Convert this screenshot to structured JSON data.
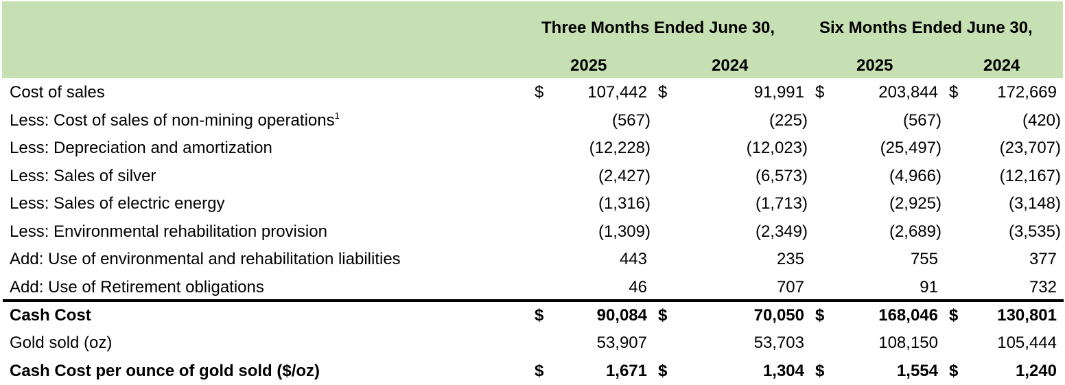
{
  "table": {
    "header": {
      "group1": "Three Months Ended June 30,",
      "group2": "Six Months Ended June 30,",
      "years": [
        "2025",
        "2024",
        "2025",
        "2024"
      ]
    },
    "header_color": "#c6e0b4",
    "rows": [
      {
        "label": "Cost of sales",
        "footnote": "",
        "bold": false,
        "dollars": [
          "$",
          "$",
          "$",
          "$"
        ],
        "values": [
          "107,442",
          "91,991",
          "203,844",
          "172,669"
        ]
      },
      {
        "label": "Less: Cost of sales of non-mining operations",
        "footnote": "1",
        "bold": false,
        "dollars": [
          "",
          "",
          "",
          ""
        ],
        "values": [
          "(567)",
          "(225)",
          "(567)",
          "(420)"
        ]
      },
      {
        "label": "Less: Depreciation and amortization",
        "footnote": "",
        "bold": false,
        "dollars": [
          "",
          "",
          "",
          ""
        ],
        "values": [
          "(12,228)",
          "(12,023)",
          "(25,497)",
          "(23,707)"
        ]
      },
      {
        "label": "Less: Sales of silver",
        "footnote": "",
        "bold": false,
        "dollars": [
          "",
          "",
          "",
          ""
        ],
        "values": [
          "(2,427)",
          "(6,573)",
          "(4,966)",
          "(12,167)"
        ]
      },
      {
        "label": "Less: Sales of electric energy",
        "footnote": "",
        "bold": false,
        "dollars": [
          "",
          "",
          "",
          ""
        ],
        "values": [
          "(1,316)",
          "(1,713)",
          "(2,925)",
          "(3,148)"
        ]
      },
      {
        "label": "Less: Environmental rehabilitation provision",
        "footnote": "",
        "bold": false,
        "dollars": [
          "",
          "",
          "",
          ""
        ],
        "values": [
          "(1,309)",
          "(2,349)",
          "(2,689)",
          "(3,535)"
        ]
      },
      {
        "label": "Add: Use of environmental and rehabilitation liabilities",
        "footnote": "",
        "bold": false,
        "dollars": [
          "",
          "",
          "",
          ""
        ],
        "values": [
          "443",
          "235",
          "755",
          "377"
        ]
      },
      {
        "label": "Add: Use of Retirement obligations",
        "footnote": "",
        "bold": false,
        "dollars": [
          "",
          "",
          "",
          ""
        ],
        "values": [
          "46",
          "707",
          "91",
          "732"
        ]
      },
      {
        "label": "Cash Cost",
        "footnote": "",
        "bold": true,
        "dollars": [
          "$",
          "$",
          "$",
          "$"
        ],
        "values": [
          "90,084",
          "70,050",
          "168,046",
          "130,801"
        ]
      },
      {
        "label": "Gold sold (oz)",
        "footnote": "",
        "bold": false,
        "dollars": [
          "",
          "",
          "",
          ""
        ],
        "values": [
          "53,907",
          "53,703",
          "108,150",
          "105,444"
        ]
      },
      {
        "label": "Cash Cost per ounce of gold sold ($/oz)",
        "footnote": "",
        "bold": true,
        "dollars": [
          "$",
          "$",
          "$",
          "$"
        ],
        "values": [
          "1,671",
          "1,304",
          "1,554",
          "1,240"
        ]
      }
    ]
  }
}
